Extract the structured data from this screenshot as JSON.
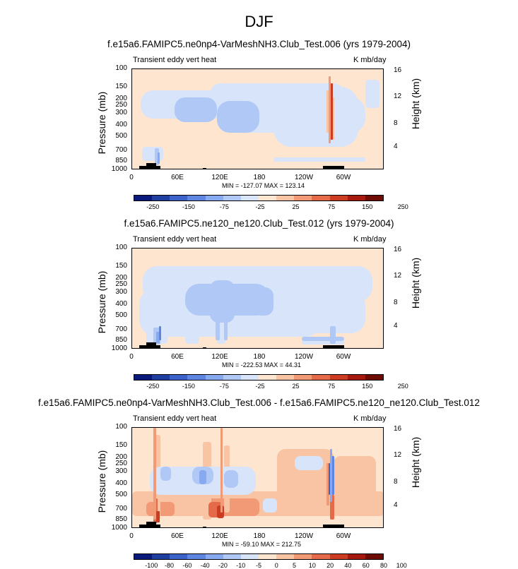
{
  "title": "DJF",
  "palette_colors": [
    "#0a1a7a",
    "#1e3fa0",
    "#3a62c8",
    "#5e85e0",
    "#86a9ef",
    "#b0c8f5",
    "#d8e4fa",
    "#fde5d0",
    "#f9c4a4",
    "#f29a76",
    "#e56a4a",
    "#cc3c22",
    "#a5190f",
    "#6e0b05"
  ],
  "chart_data": [
    {
      "type": "heatmap",
      "title": "f.e15a6.FAMIPC5.ne0np4-VarMeshNH3.Club_Test.006 (yrs 1979-2004)",
      "left_label": "Transient eddy vert heat",
      "right_label": "K mb/day",
      "ylabel": "Pressure (mb)",
      "y2label": "Height (km)",
      "xticks": [
        "0",
        "60E",
        "120E",
        "180",
        "120W",
        "60W"
      ],
      "yticks": [
        "100",
        "150",
        "200",
        "250",
        "300",
        "400",
        "500",
        "700",
        "850",
        "1000"
      ],
      "y2ticks": [
        "16",
        "12",
        "8",
        "4"
      ],
      "minmax": "MIN = -127.07   MAX = 123.14",
      "colorbar_labels": [
        "-250",
        "-150",
        "-75",
        "-25",
        "25",
        "75",
        "150",
        "250"
      ]
    },
    {
      "type": "heatmap",
      "title": "f.e15a6.FAMIPC5.ne120_ne120.Club_Test.012 (yrs 1979-2004)",
      "left_label": "Transient eddy vert heat",
      "right_label": "K mb/day",
      "ylabel": "Pressure (mb)",
      "y2label": "Height (km)",
      "xticks": [
        "0",
        "60E",
        "120E",
        "180",
        "120W",
        "60W"
      ],
      "yticks": [
        "100",
        "150",
        "200",
        "250",
        "300",
        "400",
        "500",
        "700",
        "850",
        "1000"
      ],
      "y2ticks": [
        "16",
        "12",
        "8",
        "4"
      ],
      "minmax": "MIN = -222.53   MAX = 44.31",
      "colorbar_labels": [
        "-250",
        "-150",
        "-75",
        "-25",
        "25",
        "75",
        "150",
        "250"
      ]
    },
    {
      "type": "heatmap",
      "title": "f.e15a6.FAMIPC5.ne0np4-VarMeshNH3.Club_Test.006 - f.e15a6.FAMIPC5.ne120_ne120.Club_Test.012",
      "left_label": "Transient eddy vert heat",
      "right_label": "K mb/day",
      "ylabel": "Pressure (mb)",
      "y2label": "Height (km)",
      "xticks": [
        "0",
        "60E",
        "120E",
        "180",
        "120W",
        "60W"
      ],
      "yticks": [
        "100",
        "150",
        "200",
        "250",
        "300",
        "400",
        "500",
        "700",
        "850",
        "1000"
      ],
      "y2ticks": [
        "16",
        "12",
        "8",
        "4"
      ],
      "minmax": "MIN = -59.10   MAX = 212.75",
      "colorbar_labels": [
        "-100",
        "-80",
        "-60",
        "-40",
        "-20",
        "-10",
        "-5",
        "0",
        "5",
        "10",
        "20",
        "40",
        "60",
        "80",
        "100"
      ]
    }
  ]
}
